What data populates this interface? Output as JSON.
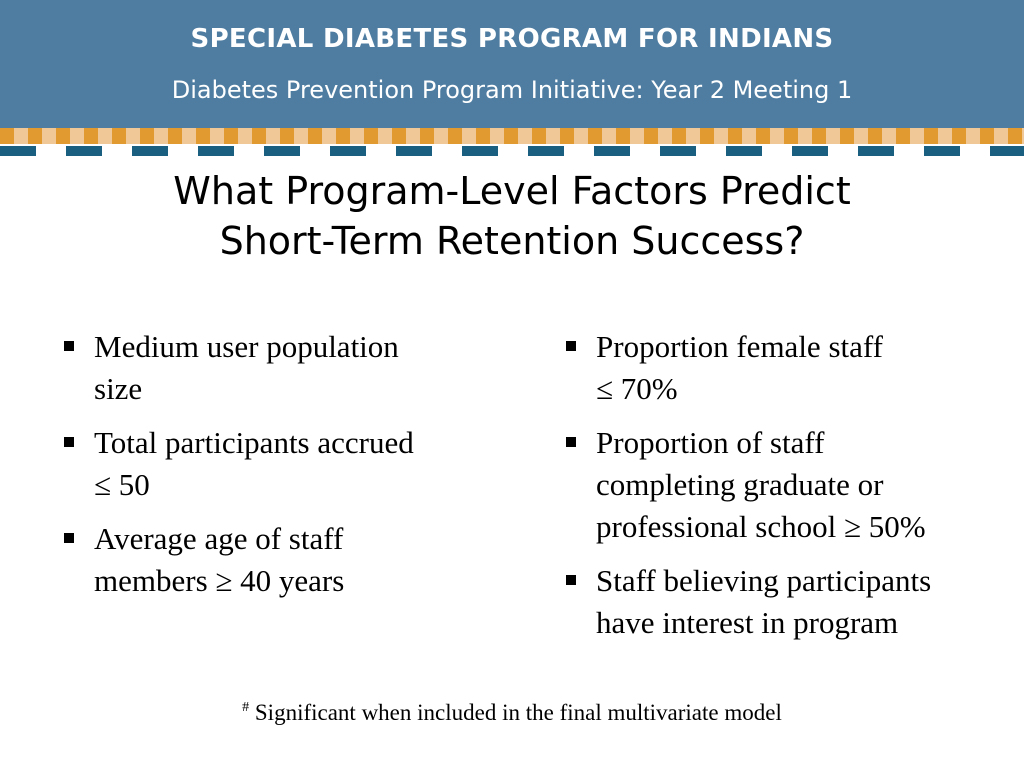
{
  "header": {
    "title": "SPECIAL DIABETES PROGRAM FOR INDIANS",
    "subtitle": "Diabetes Prevention Program Initiative:  Year 2 Meeting 1"
  },
  "colors": {
    "header_bg": "#4f7da1",
    "stripe_orange": "#e09a30",
    "stripe_tan": "#f0c898",
    "stripe_teal": "#1a5f80"
  },
  "slide": {
    "title_line1": "What Program-Level Factors Predict",
    "title_line2": "Short-Term Retention Success?"
  },
  "left_bullets": [
    {
      "line1": "Medium user population",
      "line2": "size"
    },
    {
      "line1": "Total participants accrued",
      "line2": "≤ 50"
    },
    {
      "line1": "Average age of staff",
      "line2": "members ≥ 40 years"
    }
  ],
  "right_bullets": [
    {
      "line1": "Proportion female staff",
      "line2": "≤ 70%"
    },
    {
      "line1": "Proportion of staff",
      "line2": "completing graduate or",
      "line3": "professional school ≥ 50%"
    },
    {
      "line1": "Staff believing participants",
      "line2": "have interest in program"
    }
  ],
  "footnote": {
    "marker": "#",
    "text": " Significant when included in the final multivariate model"
  }
}
